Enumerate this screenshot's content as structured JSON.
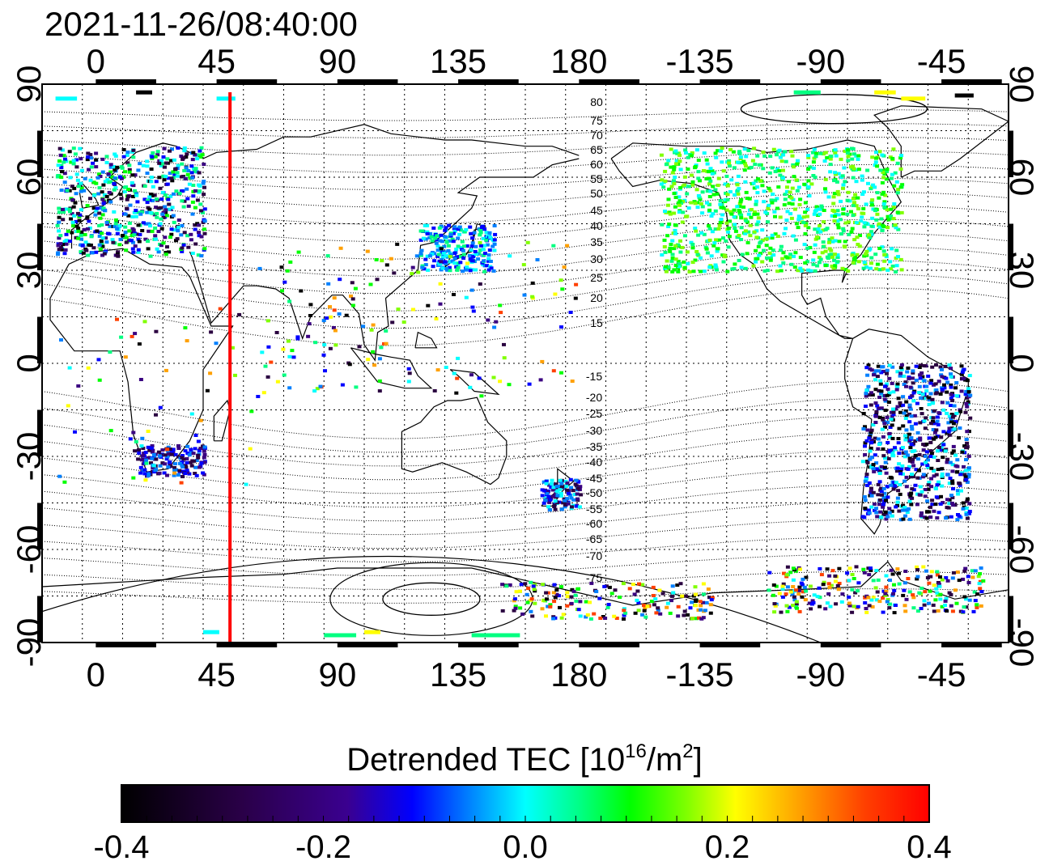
{
  "title": "2021-11-26/08:40:00",
  "x_ticks_top": [
    "0",
    "45",
    "90",
    "135",
    "180",
    "-135",
    "-90",
    "-45"
  ],
  "x_ticks_bottom": [
    "0",
    "45",
    "90",
    "135",
    "180",
    "-135",
    "-90",
    "-45"
  ],
  "y_ticks_left": [
    "90",
    "60",
    "30",
    "0",
    "-30",
    "-60",
    "-90"
  ],
  "y_ticks_right": [
    "90",
    "60",
    "30",
    "0",
    "-30",
    "-60",
    "-90"
  ],
  "contour_labels": {
    "north": [
      "80",
      "75",
      "70",
      "65",
      "60",
      "55",
      "50",
      "45",
      "40",
      "35",
      "30",
      "25",
      "20",
      "15"
    ],
    "south": [
      "-15",
      "-20",
      "-25",
      "-30",
      "-35",
      "-40",
      "-45",
      "-50",
      "-55",
      "-60",
      "-65",
      "-70",
      "-75"
    ]
  },
  "marker_line": {
    "longitude": 50,
    "color": "#ff0000"
  },
  "colorbar": {
    "label": "Detrended TEC",
    "unit_prefix": "[10",
    "unit_exp": "16",
    "unit_mid": "/m",
    "unit_exp2": "2",
    "unit_suffix": "]",
    "ticks": [
      "-0.4",
      "-0.2",
      "0.0",
      "0.2",
      "0.4"
    ],
    "range": [
      -0.4,
      0.4
    ],
    "colors": [
      "#000000",
      "#2a0040",
      "#3a0080",
      "#0000ff",
      "#0080ff",
      "#00ffff",
      "#00ff80",
      "#00ff00",
      "#80ff00",
      "#ffff00",
      "#ffa000",
      "#ff4000",
      "#ff0000"
    ]
  },
  "map_data": {
    "projection": "equirectangular",
    "lon_range": [
      -20,
      340
    ],
    "lat_range": [
      -90,
      90
    ],
    "grid_lon_step": 15,
    "grid_lat_step": 15
  }
}
